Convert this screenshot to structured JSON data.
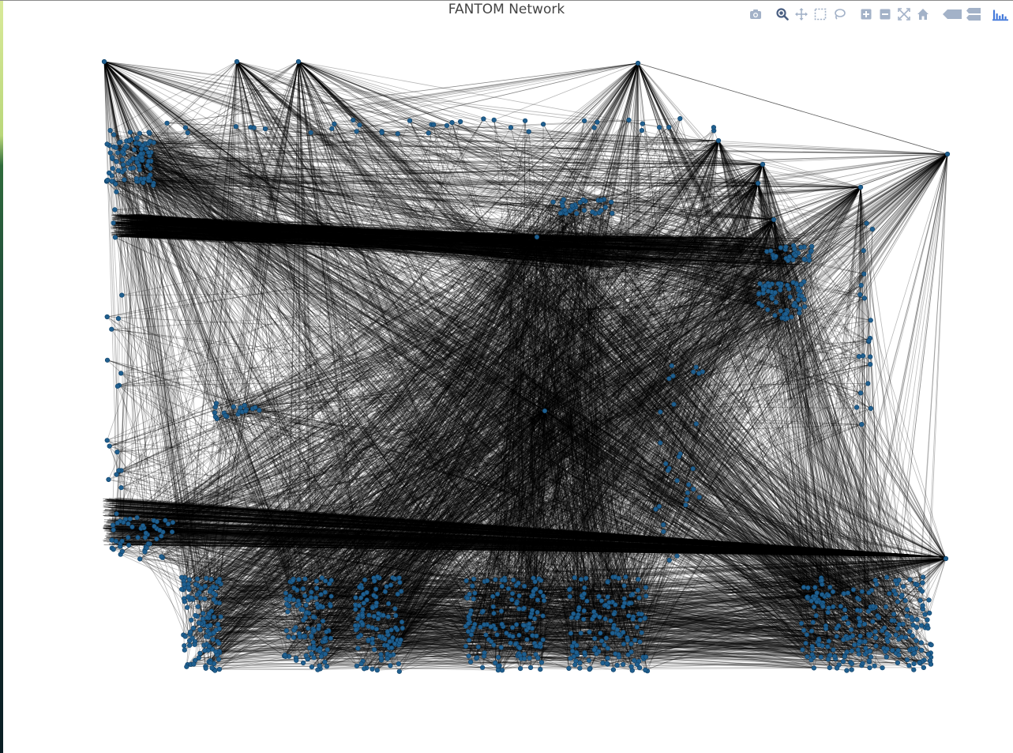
{
  "plot": {
    "title": "FANTOM Network"
  },
  "modebar": {
    "buttons": [
      {
        "name": "download-plot-button",
        "icon": "camera-icon",
        "active": false
      },
      {
        "name": "zoom-button",
        "icon": "zoom-icon",
        "active": true
      },
      {
        "name": "pan-button",
        "icon": "pan-icon",
        "active": false
      },
      {
        "name": "box-select-button",
        "icon": "box-select-icon",
        "active": false
      },
      {
        "name": "lasso-select-button",
        "icon": "lasso-icon",
        "active": false
      },
      {
        "name": "zoom-in-button",
        "icon": "zoom-in-icon",
        "active": false
      },
      {
        "name": "zoom-out-button",
        "icon": "zoom-out-icon",
        "active": false
      },
      {
        "name": "autoscale-button",
        "icon": "autoscale-icon",
        "active": false
      },
      {
        "name": "reset-axes-button",
        "icon": "home-icon",
        "active": false
      },
      {
        "name": "spike-lines-button",
        "icon": "spike-lines-icon",
        "active": false
      },
      {
        "name": "hover-compare-button",
        "icon": "hover-compare-icon",
        "active": false
      },
      {
        "name": "plotly-logo",
        "icon": "plotly-logo-icon",
        "active": false
      }
    ]
  },
  "colors": {
    "node": "#1f5f8f",
    "node_outline": "#0e3d63",
    "edge": "#000000",
    "modebar_icon": "#a3b2c8",
    "modebar_active": "#4a5f82",
    "title": "#444444"
  }
}
